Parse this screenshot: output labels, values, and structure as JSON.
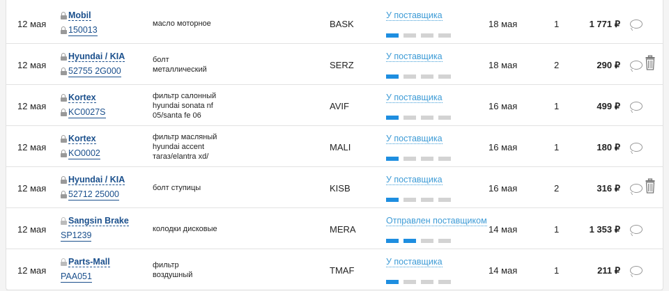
{
  "orders": [
    {
      "date": "12 мая",
      "brand": "Mobil",
      "article": "150013",
      "article_locked": true,
      "description": [
        "масло моторное"
      ],
      "supplier": "BASK",
      "status": "У поставщика",
      "progress": 1,
      "deadline": "18 мая",
      "qty": "1",
      "price": "1 771 ₽",
      "deletable": false
    },
    {
      "date": "12 мая",
      "brand": "Hyundai / KIA",
      "article": "52755 2G000",
      "article_locked": true,
      "description": [
        "болт",
        "металлический"
      ],
      "supplier": "SERZ",
      "status": "У поставщика",
      "progress": 1,
      "deadline": "18 мая",
      "qty": "2",
      "price": "290 ₽",
      "deletable": true
    },
    {
      "date": "12 мая",
      "brand": "Kortex",
      "article": "KC0027S",
      "article_locked": true,
      "description": [
        "фильтр салонный",
        "hyundai sonata nf",
        "05/santa fe 06"
      ],
      "supplier": "AVIF",
      "status": "У поставщика",
      "progress": 1,
      "deadline": "16 мая",
      "qty": "1",
      "price": "499 ₽",
      "deletable": false
    },
    {
      "date": "12 мая",
      "brand": "Kortex",
      "article": "KO0002",
      "article_locked": true,
      "description": [
        "фильтр масляный",
        "hyundai accent",
        "тагаз/elantra xd/"
      ],
      "supplier": "MALI",
      "status": "У поставщика",
      "progress": 1,
      "deadline": "16 мая",
      "qty": "1",
      "price": "180 ₽",
      "deletable": false
    },
    {
      "date": "12 мая",
      "brand": "Hyundai / KIA",
      "article": "52712 25000",
      "article_locked": true,
      "description": [
        "болт ступицы"
      ],
      "supplier": "KISB",
      "status": "У поставщика",
      "progress": 1,
      "deadline": "16 мая",
      "qty": "2",
      "price": "316 ₽",
      "deletable": true
    },
    {
      "date": "12 мая",
      "brand": "Sangsin Brake",
      "article": "SP1239",
      "article_locked": false,
      "description": [
        "колодки дисковые"
      ],
      "supplier": "MERA",
      "status": "Отправлен поставщиком",
      "progress": 2,
      "deadline": "14 мая",
      "qty": "1",
      "price": "1 353 ₽",
      "deletable": false
    },
    {
      "date": "12 мая",
      "brand": "Parts-Mall",
      "article": "PAA051",
      "article_locked": false,
      "description": [
        "фильтр",
        "воздушный"
      ],
      "supplier": "TMAF",
      "status": "У поставщика",
      "progress": 1,
      "deadline": "14 мая",
      "qty": "1",
      "price": "211 ₽",
      "deletable": false
    }
  ],
  "progress_steps": 4,
  "colors": {
    "link": "#1a4f8c",
    "status": "#3d9bd6",
    "progress_on": "#1e8ee0",
    "progress_off": "#d3d3d3"
  }
}
